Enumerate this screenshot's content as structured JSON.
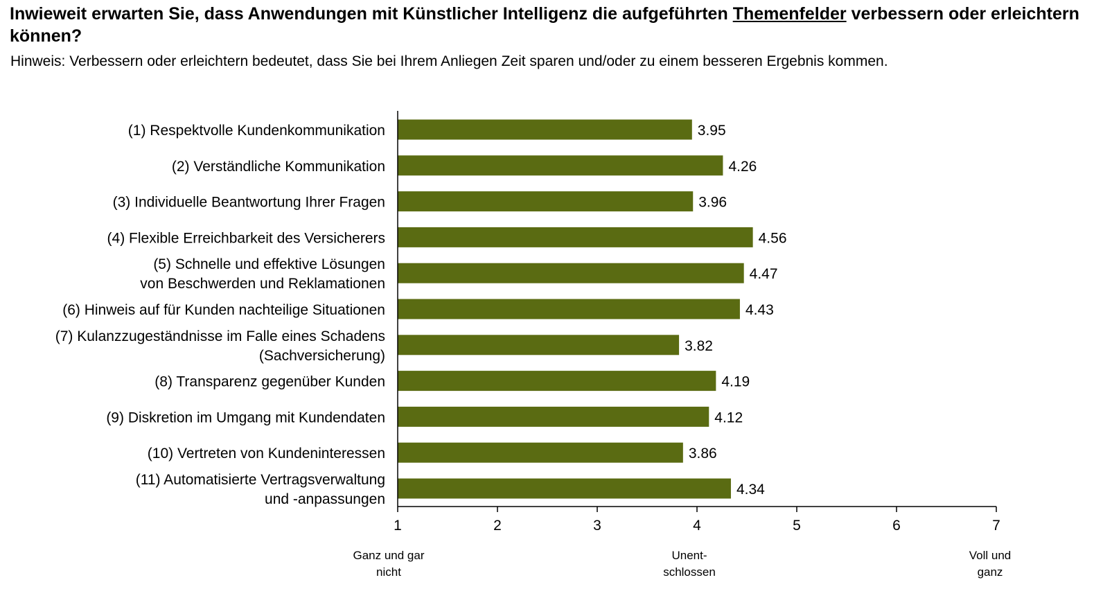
{
  "title": {
    "before": "Inwieweit erwarten Sie, dass Anwendungen mit Künstlicher Intelligenz die aufgeführten ",
    "underlined": "Themenfelder",
    "after": " verbessern oder erleichtern können?"
  },
  "note": "Hinweis: Verbessern oder erleichtern bedeutet, dass Sie bei Ihrem Anliegen Zeit sparen und/oder zu einem besseren Ergebnis kommen.",
  "colors": {
    "bar": "#5a6b12",
    "axis": "#000000"
  },
  "chart_data": {
    "type": "bar",
    "orientation": "horizontal",
    "categories": [
      [
        "(1) Respektvolle Kundenkommunikation"
      ],
      [
        "(2) Verständliche Kommunikation"
      ],
      [
        "(3) Individuelle Beantwortung Ihrer Fragen"
      ],
      [
        "(4) Flexible Erreichbarkeit des Versicherers"
      ],
      [
        "(5) Schnelle und effektive Lösungen",
        "von Beschwerden und Reklamationen"
      ],
      [
        "(6) Hinweis auf für Kunden nachteilige Situationen"
      ],
      [
        "(7) Kulanzzugeständnisse im Falle eines Schadens",
        "(Sachversicherung)"
      ],
      [
        "(8) Transparenz gegenüber Kunden"
      ],
      [
        "(9) Diskretion im Umgang mit Kundendaten"
      ],
      [
        "(10) Vertreten von Kundeninteressen"
      ],
      [
        "(11) Automatisierte Vertragsverwaltung",
        "und -anpassungen"
      ]
    ],
    "values": [
      3.95,
      4.26,
      3.96,
      4.56,
      4.47,
      4.43,
      3.82,
      4.19,
      4.12,
      3.86,
      4.34
    ],
    "value_labels": [
      "3.95",
      "4.26",
      "3.96",
      "4.56",
      "4.47",
      "4.43",
      "3.82",
      "4.19",
      "4.12",
      "3.86",
      "4.34"
    ],
    "xlim": [
      1,
      7
    ],
    "xticks": [
      "1",
      "2",
      "3",
      "4",
      "5",
      "6",
      "7"
    ],
    "scale_anchors": [
      {
        "at": 1,
        "lines": [
          "Ganz und gar",
          "nicht"
        ]
      },
      {
        "at": 4,
        "lines": [
          "Unent-",
          "schlossen"
        ]
      },
      {
        "at": 7,
        "lines": [
          "Voll und",
          "ganz"
        ]
      }
    ]
  }
}
